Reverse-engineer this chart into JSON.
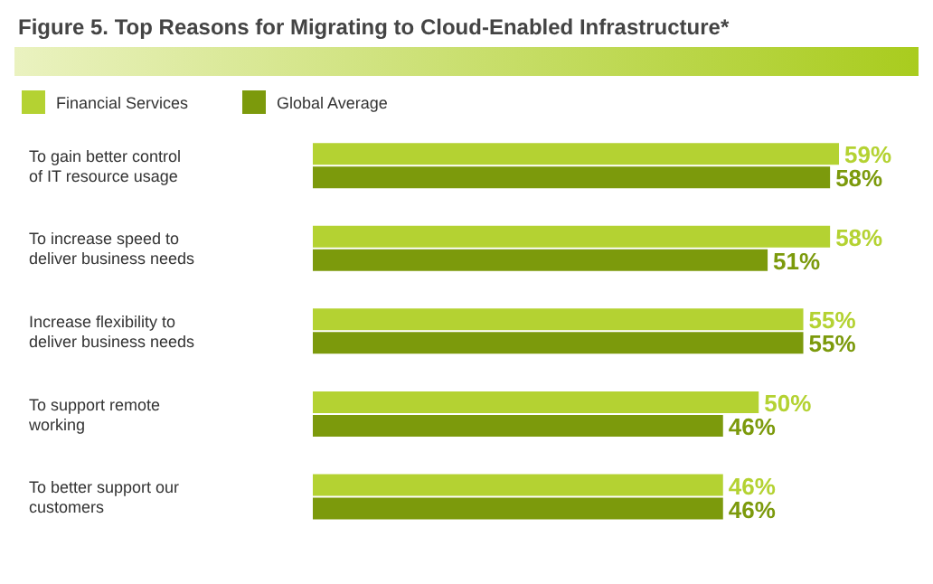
{
  "chart_data": {
    "type": "bar",
    "orientation": "horizontal",
    "title": "Figure 5. Top Reasons for Migrating to Cloud-Enabled Infrastructure*",
    "categories": [
      "To gain better control of IT resource usage",
      "To increase speed to deliver business needs",
      "Increase flexibility to deliver business needs",
      "To support remote working",
      "To better support our customers"
    ],
    "series": [
      {
        "name": "Financial Services",
        "color": "#b4d232",
        "values": [
          59,
          58,
          55,
          50,
          46
        ],
        "value_labels": [
          "59%",
          "58%",
          "55%",
          "50%",
          "46%"
        ]
      },
      {
        "name": "Global Average",
        "color": "#7c9a0c",
        "values": [
          58,
          51,
          55,
          46,
          46
        ],
        "value_labels": [
          "58%",
          "51%",
          "55%",
          "46%",
          "46%"
        ]
      }
    ],
    "legend": "top left",
    "grid": false
  }
}
